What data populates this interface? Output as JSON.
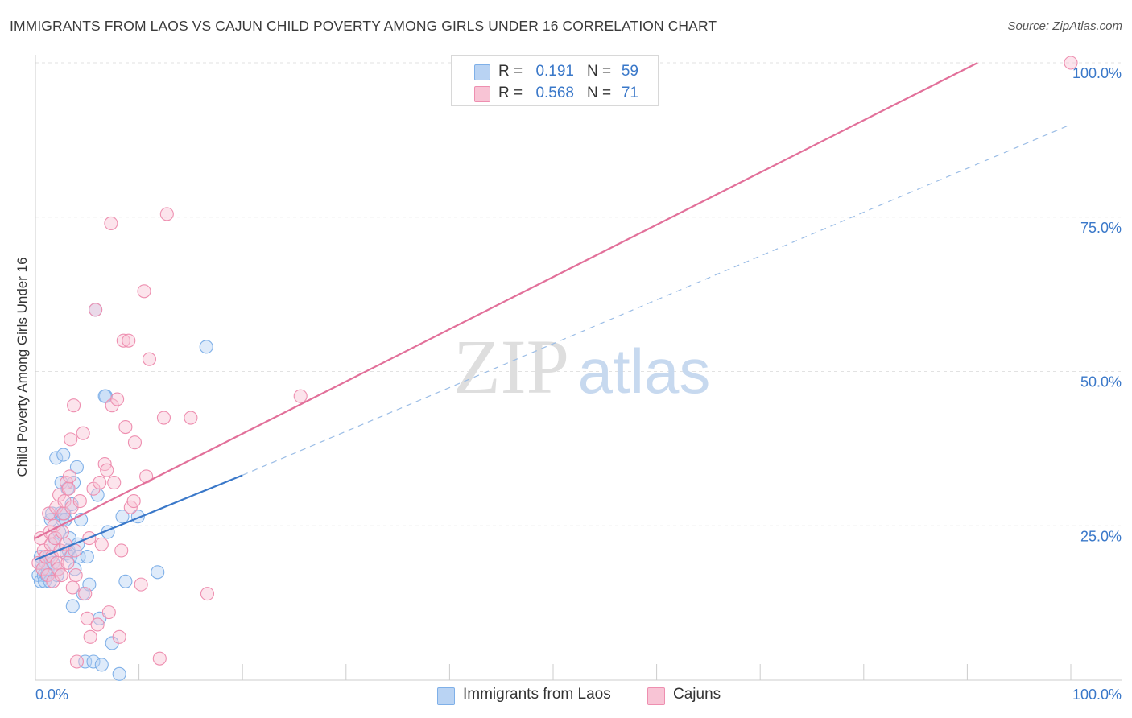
{
  "title": "IMMIGRANTS FROM LAOS VS CAJUN CHILD POVERTY AMONG GIRLS UNDER 16 CORRELATION CHART",
  "source": "Source: ZipAtlas.com",
  "watermark": {
    "zip": "ZIP",
    "atlas": "atlas"
  },
  "legend": {
    "r_label": "R =",
    "n_label": "N =",
    "series": [
      {
        "name": "Immigrants from Laos",
        "r": "0.191",
        "n": "59",
        "color": "#7fb0e8",
        "fill": "#b9d3f3"
      },
      {
        "name": "Cajuns",
        "r": "0.568",
        "n": "71",
        "color": "#ee8fb0",
        "fill": "#f8c4d5"
      }
    ]
  },
  "chart_data": {
    "type": "scatter",
    "title": "IMMIGRANTS FROM LAOS VS CAJUN CHILD POVERTY AMONG GIRLS UNDER 16 CORRELATION CHART",
    "xlabel": "",
    "ylabel": "Child Poverty Among Girls Under 16",
    "xlim": [
      0,
      100
    ],
    "ylim": [
      0,
      100
    ],
    "x_tick_labels": [
      "0.0%",
      "100.0%"
    ],
    "y_tick_labels": [
      "25.0%",
      "50.0%",
      "75.0%",
      "100.0%"
    ],
    "y_ticks": [
      25,
      50,
      75,
      100
    ],
    "series": [
      {
        "name": "Immigrants from Laos",
        "color": "#5b9be0",
        "trend": {
          "x0": 0,
          "y0": 19.5,
          "x1": 20,
          "y1": 33.2,
          "dashed_to_x": 100,
          "dashed_to_y": 90
        },
        "points": [
          [
            0.3,
            17
          ],
          [
            0.5,
            16
          ],
          [
            0.5,
            20
          ],
          [
            0.6,
            19
          ],
          [
            0.7,
            18
          ],
          [
            0.8,
            17
          ],
          [
            0.9,
            16
          ],
          [
            1.0,
            19
          ],
          [
            1.1,
            17
          ],
          [
            1.2,
            18
          ],
          [
            1.3,
            20
          ],
          [
            1.4,
            16
          ],
          [
            1.5,
            26
          ],
          [
            1.6,
            27
          ],
          [
            1.7,
            19
          ],
          [
            1.8,
            22
          ],
          [
            1.9,
            23
          ],
          [
            2.0,
            36
          ],
          [
            2.1,
            17
          ],
          [
            2.2,
            18
          ],
          [
            2.3,
            24
          ],
          [
            2.4,
            27
          ],
          [
            2.5,
            32
          ],
          [
            2.6,
            26
          ],
          [
            2.7,
            36.5
          ],
          [
            2.8,
            27
          ],
          [
            2.9,
            26
          ],
          [
            3.0,
            20.5
          ],
          [
            3.1,
            31
          ],
          [
            3.2,
            21
          ],
          [
            3.3,
            23
          ],
          [
            3.4,
            20
          ],
          [
            3.5,
            28.5
          ],
          [
            3.6,
            12
          ],
          [
            3.7,
            32
          ],
          [
            3.8,
            18
          ],
          [
            4.0,
            34.5
          ],
          [
            4.1,
            22
          ],
          [
            4.2,
            20
          ],
          [
            4.4,
            26
          ],
          [
            4.6,
            14
          ],
          [
            4.8,
            3
          ],
          [
            5.0,
            20
          ],
          [
            5.2,
            15.5
          ],
          [
            5.6,
            3
          ],
          [
            5.8,
            60
          ],
          [
            6.0,
            30
          ],
          [
            6.2,
            10
          ],
          [
            6.4,
            2.5
          ],
          [
            6.8,
            46
          ],
          [
            7.0,
            24
          ],
          [
            7.4,
            6
          ],
          [
            8.1,
            1
          ],
          [
            8.4,
            26.5
          ],
          [
            8.7,
            16
          ],
          [
            9.9,
            26.5
          ],
          [
            11.8,
            17.5
          ],
          [
            16.5,
            54
          ],
          [
            6.7,
            46
          ]
        ]
      },
      {
        "name": "Cajuns",
        "color": "#e8799f",
        "trend": {
          "x0": 0,
          "y0": 23,
          "x1": 91,
          "y1": 100
        },
        "points": [
          [
            0.3,
            19
          ],
          [
            0.5,
            23
          ],
          [
            0.7,
            18
          ],
          [
            0.8,
            21
          ],
          [
            1.0,
            20
          ],
          [
            1.2,
            17
          ],
          [
            1.3,
            27
          ],
          [
            1.4,
            24
          ],
          [
            1.5,
            22
          ],
          [
            1.6,
            20
          ],
          [
            1.7,
            16
          ],
          [
            1.8,
            25
          ],
          [
            1.9,
            23
          ],
          [
            2.0,
            28
          ],
          [
            2.1,
            19
          ],
          [
            2.2,
            18
          ],
          [
            2.3,
            30
          ],
          [
            2.4,
            21
          ],
          [
            2.5,
            17
          ],
          [
            2.6,
            24
          ],
          [
            2.7,
            27
          ],
          [
            2.8,
            29
          ],
          [
            2.9,
            22
          ],
          [
            3.0,
            32
          ],
          [
            3.1,
            19
          ],
          [
            3.2,
            31
          ],
          [
            3.3,
            33
          ],
          [
            3.4,
            39
          ],
          [
            3.5,
            28
          ],
          [
            3.6,
            15
          ],
          [
            3.7,
            44.5
          ],
          [
            3.8,
            21
          ],
          [
            3.9,
            17
          ],
          [
            4.0,
            3
          ],
          [
            4.3,
            29
          ],
          [
            4.6,
            40
          ],
          [
            4.8,
            14
          ],
          [
            5.0,
            10
          ],
          [
            5.2,
            23
          ],
          [
            5.3,
            7
          ],
          [
            5.6,
            31
          ],
          [
            5.8,
            60
          ],
          [
            6.0,
            9
          ],
          [
            6.2,
            32
          ],
          [
            6.4,
            22
          ],
          [
            6.7,
            35
          ],
          [
            6.9,
            34
          ],
          [
            7.1,
            11
          ],
          [
            7.4,
            44.5
          ],
          [
            7.6,
            32
          ],
          [
            7.9,
            45.5
          ],
          [
            8.1,
            7
          ],
          [
            8.3,
            21
          ],
          [
            8.5,
            55
          ],
          [
            8.7,
            41
          ],
          [
            9.0,
            55
          ],
          [
            9.2,
            28
          ],
          [
            9.5,
            29
          ],
          [
            9.6,
            38.5
          ],
          [
            10.2,
            15.5
          ],
          [
            10.5,
            63
          ],
          [
            10.7,
            33
          ],
          [
            11.0,
            52
          ],
          [
            12.0,
            3.5
          ],
          [
            12.4,
            42.5
          ],
          [
            12.7,
            75.5
          ],
          [
            15.0,
            42.5
          ],
          [
            16.6,
            14
          ],
          [
            25.6,
            46
          ],
          [
            100,
            100
          ],
          [
            7.3,
            74
          ]
        ]
      }
    ]
  }
}
